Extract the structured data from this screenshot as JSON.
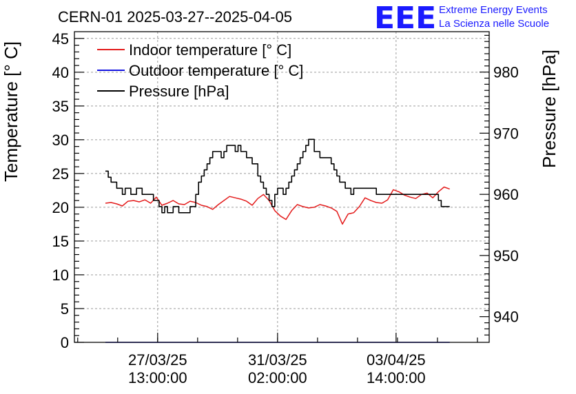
{
  "chart_data": {
    "type": "line",
    "title": "CERN-01 2025-03-27--2025-04-05",
    "brand": {
      "logo_text": "EEE",
      "line1": "Extreme Energy Events",
      "line2": "La Scienza nelle Scuole",
      "color": "#1a1aff"
    },
    "x_axis": {
      "tick_labels": [
        {
          "date": "27/03/25",
          "time": "13:00:00",
          "hour": 37
        },
        {
          "date": "31/03/25",
          "time": "02:00:00",
          "hour": 122
        },
        {
          "date": "03/04/25",
          "time": "14:00:00",
          "hour": 206
        }
      ],
      "range_hours": [
        -22,
        272
      ],
      "note": "hours since 2025-03-26 00:00"
    },
    "y_left": {
      "label": "Temperature [° C]",
      "range": [
        0,
        46
      ],
      "ticks": [
        "0",
        "5",
        "10",
        "15",
        "20",
        "25",
        "30",
        "35",
        "40",
        "45"
      ]
    },
    "y_right": {
      "label": "Pressure [hPa]",
      "range": [
        935.8,
        986.6
      ],
      "ticks": [
        "940",
        "950",
        "960",
        "970",
        "980"
      ]
    },
    "legend": {
      "placement": "top-left",
      "entries": [
        {
          "label": "Indoor temperature [° C]",
          "color": "#e31a1a"
        },
        {
          "label": "Outdoor temperature [° C]",
          "color": "#1212e0"
        },
        {
          "label": "Pressure [hPa]",
          "color": "#000000"
        }
      ]
    },
    "series": [
      {
        "name": "Indoor temperature [° C]",
        "color": "#e31a1a",
        "axis": "left",
        "step": false,
        "x": [
          0,
          4,
          8,
          12,
          16,
          20,
          24,
          28,
          32,
          36,
          40,
          44,
          48,
          52,
          56,
          60,
          64,
          68,
          72,
          76,
          80,
          84,
          88,
          92,
          96,
          100,
          104,
          108,
          112,
          116,
          120,
          124,
          128,
          132,
          136,
          140,
          144,
          148,
          152,
          156,
          160,
          164,
          168,
          172,
          176,
          180,
          184,
          188,
          192,
          196,
          200,
          204,
          208,
          212,
          216,
          220,
          224,
          228,
          232,
          236,
          240,
          244
        ],
        "y": [
          20.6,
          20.7,
          20.5,
          20.2,
          20.9,
          21.0,
          20.8,
          21.1,
          20.6,
          21.5,
          20.3,
          20.6,
          21.0,
          20.5,
          20.4,
          20.9,
          20.7,
          20.3,
          20.1,
          19.7,
          20.4,
          21.0,
          21.6,
          21.4,
          21.2,
          20.9,
          20.3,
          21.3,
          21.9,
          21.0,
          19.5,
          18.7,
          18.2,
          19.5,
          20.4,
          20.1,
          19.9,
          20.0,
          20.4,
          20.2,
          19.9,
          19.4,
          17.5,
          19.0,
          19.2,
          20.1,
          21.4,
          21.0,
          20.7,
          20.6,
          21.1,
          22.6,
          22.3,
          21.8,
          21.5,
          21.3,
          21.9,
          22.1,
          21.4,
          22.3,
          23.0,
          22.7
        ]
      },
      {
        "name": "Outdoor temperature [° C]",
        "color": "#1212e0",
        "axis": "left",
        "step": false,
        "x": [
          0,
          244
        ],
        "y": [
          0,
          0
        ]
      },
      {
        "name": "Pressure [hPa]",
        "color": "#000000",
        "axis": "right",
        "step": true,
        "x": [
          0,
          2,
          4,
          8,
          12,
          14,
          18,
          22,
          26,
          30,
          34,
          38,
          40,
          42,
          44,
          48,
          52,
          56,
          60,
          64,
          66,
          68,
          70,
          72,
          74,
          76,
          80,
          82,
          84,
          86,
          88,
          90,
          92,
          94,
          96,
          98,
          100,
          104,
          108,
          110,
          112,
          114,
          116,
          118,
          120,
          122,
          124,
          126,
          128,
          130,
          132,
          134,
          136,
          138,
          140,
          142,
          144,
          148,
          152,
          156,
          160,
          162,
          164,
          166,
          168,
          170,
          172,
          174,
          176,
          178,
          180,
          182,
          184,
          186,
          188,
          192,
          196,
          200,
          204,
          208,
          212,
          216,
          220,
          224,
          228,
          232,
          236,
          238,
          240,
          244
        ],
        "y": [
          963.8,
          962.8,
          962.0,
          961.0,
          960.0,
          961.0,
          960.0,
          961.0,
          960.0,
          960.0,
          959.0,
          958.0,
          957.0,
          958.0,
          957.0,
          958.0,
          957.0,
          957.0,
          958.0,
          960.0,
          962.0,
          963.0,
          964.0,
          965.0,
          966.0,
          967.0,
          967.0,
          966.0,
          967.0,
          968.0,
          968.0,
          968.0,
          967.0,
          968.0,
          967.0,
          967.0,
          966.0,
          965.0,
          963.0,
          962.0,
          961.0,
          960.0,
          959.0,
          958.0,
          960.0,
          961.0,
          961.0,
          960.0,
          961.0,
          962.0,
          963.0,
          964.0,
          965.0,
          966.0,
          967.0,
          968.0,
          969.0,
          967.0,
          966.0,
          966.0,
          965.0,
          964.0,
          963.0,
          962.0,
          962.0,
          961.0,
          961.0,
          960.0,
          961.0,
          961.0,
          961.0,
          961.0,
          961.0,
          961.0,
          961.0,
          960.0,
          960.0,
          960.0,
          960.0,
          960.0,
          960.0,
          960.0,
          960.0,
          960.0,
          960.0,
          960.0,
          959.0,
          958.0,
          958.0,
          958.0
        ]
      }
    ]
  }
}
